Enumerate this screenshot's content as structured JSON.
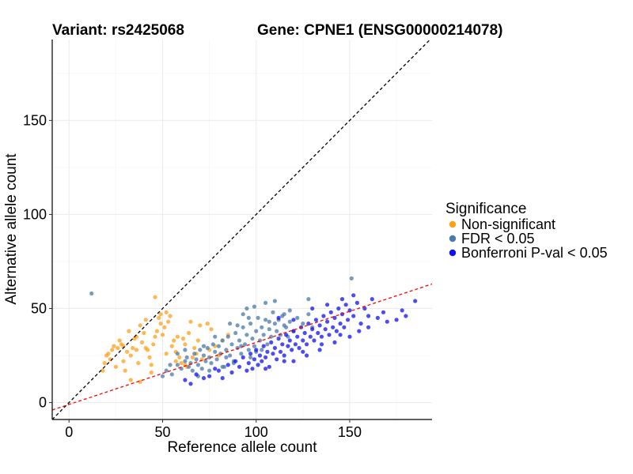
{
  "chart_data": {
    "type": "scatter",
    "title_left": "Variant: rs2425068",
    "title_right": "Gene: CPNE1 (ENSG00000214078)",
    "xlabel": "Reference allele count",
    "ylabel": "Alternative allele count",
    "xlim": [
      -9,
      194
    ],
    "ylim": [
      -9,
      193
    ],
    "x_ticks": [
      0,
      50,
      100,
      150
    ],
    "y_ticks": [
      0,
      50,
      100,
      150
    ],
    "grid": true,
    "legend": {
      "title": "Significance",
      "position": "right",
      "entries": [
        "Non-significant",
        "FDR < 0.05",
        "Bonferroni P-val < 0.05"
      ]
    },
    "reference_lines": [
      {
        "style": "dashed",
        "color": "#000000",
        "intercept": 0,
        "slope": 1
      },
      {
        "style": "dashed",
        "color": "#ff0000",
        "intercept": -1,
        "slope": 0.33
      }
    ],
    "series": [
      {
        "name": "Non-significant",
        "color": "#ff9f1a",
        "points": [
          [
            18,
            17
          ],
          [
            19,
            21
          ],
          [
            20,
            25
          ],
          [
            21,
            26
          ],
          [
            22,
            23
          ],
          [
            23,
            28
          ],
          [
            24,
            30
          ],
          [
            25,
            19
          ],
          [
            26,
            29
          ],
          [
            27,
            33
          ],
          [
            28,
            31
          ],
          [
            29,
            22
          ],
          [
            30,
            17
          ],
          [
            31,
            27
          ],
          [
            32,
            38
          ],
          [
            33,
            25
          ],
          [
            34,
            29
          ],
          [
            35,
            34
          ],
          [
            36,
            28
          ],
          [
            37,
            21
          ],
          [
            38,
            41
          ],
          [
            39,
            32
          ],
          [
            40,
            37
          ],
          [
            41,
            44
          ],
          [
            42,
            28
          ],
          [
            43,
            24
          ],
          [
            44,
            20
          ],
          [
            45,
            31
          ],
          [
            46,
            35
          ],
          [
            47,
            38
          ],
          [
            48,
            45
          ],
          [
            49,
            42
          ],
          [
            50,
            36
          ],
          [
            51,
            40
          ],
          [
            52,
            48
          ],
          [
            53,
            43
          ],
          [
            54,
            46
          ],
          [
            55,
            30
          ],
          [
            56,
            33
          ],
          [
            57,
            27
          ],
          [
            58,
            35
          ],
          [
            59,
            24
          ],
          [
            60,
            21
          ],
          [
            61,
            34
          ],
          [
            62,
            31
          ],
          [
            63,
            19
          ],
          [
            64,
            37
          ],
          [
            65,
            43
          ],
          [
            66,
            24
          ],
          [
            67,
            29
          ],
          [
            68,
            26
          ],
          [
            69,
            33
          ],
          [
            70,
            41
          ],
          [
            71,
            23
          ],
          [
            75,
            28
          ],
          [
            76,
            39
          ],
          [
            78,
            30
          ],
          [
            80,
            25
          ],
          [
            82,
            33
          ],
          [
            85,
            36
          ],
          [
            46,
            56
          ],
          [
            36,
            35
          ],
          [
            41,
            29
          ],
          [
            44,
            16
          ],
          [
            49,
            47
          ],
          [
            52,
            26
          ],
          [
            57,
            22
          ],
          [
            74,
            42
          ],
          [
            62,
            20
          ],
          [
            33,
            12
          ],
          [
            38,
            11
          ],
          [
            29,
            30
          ]
        ]
      },
      {
        "name": "FDR < 0.05",
        "color": "#4a7aa8",
        "points": [
          [
            12,
            58
          ],
          [
            50,
            14
          ],
          [
            52,
            17
          ],
          [
            55,
            15
          ],
          [
            58,
            20
          ],
          [
            60,
            18
          ],
          [
            62,
            22
          ],
          [
            63,
            24
          ],
          [
            64,
            19
          ],
          [
            65,
            21
          ],
          [
            66,
            17
          ],
          [
            67,
            26
          ],
          [
            68,
            23
          ],
          [
            69,
            20
          ],
          [
            70,
            28
          ],
          [
            71,
            18
          ],
          [
            72,
            25
          ],
          [
            73,
            22
          ],
          [
            74,
            29
          ],
          [
            75,
            24
          ],
          [
            76,
            21
          ],
          [
            77,
            31
          ],
          [
            78,
            27
          ],
          [
            79,
            23
          ],
          [
            80,
            30
          ],
          [
            81,
            26
          ],
          [
            82,
            33
          ],
          [
            83,
            19
          ],
          [
            84,
            28
          ],
          [
            85,
            35
          ],
          [
            86,
            25
          ],
          [
            87,
            31
          ],
          [
            88,
            22
          ],
          [
            89,
            37
          ],
          [
            90,
            29
          ],
          [
            91,
            33
          ],
          [
            92,
            26
          ],
          [
            93,
            40
          ],
          [
            94,
            31
          ],
          [
            95,
            36
          ],
          [
            96,
            28
          ],
          [
            97,
            42
          ],
          [
            98,
            34
          ],
          [
            99,
            30
          ],
          [
            100,
            38
          ],
          [
            101,
            45
          ],
          [
            102,
            33
          ],
          [
            103,
            28
          ],
          [
            104,
            36
          ],
          [
            105,
            44
          ],
          [
            106,
            31
          ],
          [
            107,
            39
          ],
          [
            108,
            35
          ],
          [
            109,
            48
          ],
          [
            110,
            42
          ],
          [
            111,
            38
          ],
          [
            112,
            44
          ],
          [
            113,
            36
          ],
          [
            114,
            46
          ],
          [
            115,
            41
          ],
          [
            116,
            40
          ],
          [
            117,
            35
          ],
          [
            118,
            43
          ],
          [
            120,
            38
          ],
          [
            122,
            45
          ],
          [
            125,
            42
          ],
          [
            128,
            47
          ],
          [
            130,
            40
          ],
          [
            88,
            21
          ],
          [
            92,
            30
          ],
          [
            97,
            24
          ],
          [
            100,
            27
          ],
          [
            103,
            40
          ],
          [
            107,
            43
          ],
          [
            93,
            47
          ],
          [
            95,
            50
          ],
          [
            105,
            53
          ],
          [
            110,
            54
          ],
          [
            115,
            47
          ],
          [
            118,
            49
          ],
          [
            128,
            55
          ],
          [
            151,
            66
          ],
          [
            75,
            17
          ],
          [
            69,
            14
          ],
          [
            82,
            19
          ],
          [
            86,
            42
          ],
          [
            99,
            51
          ],
          [
            62,
            28
          ],
          [
            58,
            26
          ],
          [
            54,
            20
          ],
          [
            72,
            30
          ],
          [
            78,
            35
          ],
          [
            84,
            24
          ],
          [
            90,
            41
          ],
          [
            96,
            45
          ]
        ]
      },
      {
        "name": "Bonferroni P-val < 0.05",
        "color": "#1010f0",
        "points": [
          [
            62,
            12
          ],
          [
            65,
            10
          ],
          [
            68,
            15
          ],
          [
            72,
            13
          ],
          [
            75,
            14
          ],
          [
            78,
            18
          ],
          [
            80,
            17
          ],
          [
            82,
            13
          ],
          [
            85,
            20
          ],
          [
            87,
            16
          ],
          [
            89,
            22
          ],
          [
            91,
            19
          ],
          [
            93,
            24
          ],
          [
            95,
            17
          ],
          [
            96,
            21
          ],
          [
            97,
            26
          ],
          [
            98,
            18
          ],
          [
            99,
            23
          ],
          [
            100,
            28
          ],
          [
            101,
            20
          ],
          [
            102,
            25
          ],
          [
            103,
            22
          ],
          [
            104,
            30
          ],
          [
            105,
            24
          ],
          [
            106,
            27
          ],
          [
            107,
            19
          ],
          [
            108,
            32
          ],
          [
            109,
            26
          ],
          [
            110,
            29
          ],
          [
            111,
            23
          ],
          [
            112,
            34
          ],
          [
            113,
            27
          ],
          [
            114,
            31
          ],
          [
            115,
            25
          ],
          [
            116,
            36
          ],
          [
            117,
            30
          ],
          [
            118,
            33
          ],
          [
            119,
            28
          ],
          [
            120,
            38
          ],
          [
            121,
            31
          ],
          [
            122,
            35
          ],
          [
            123,
            29
          ],
          [
            124,
            40
          ],
          [
            125,
            33
          ],
          [
            126,
            37
          ],
          [
            127,
            31
          ],
          [
            128,
            42
          ],
          [
            129,
            35
          ],
          [
            130,
            39
          ],
          [
            131,
            33
          ],
          [
            132,
            44
          ],
          [
            133,
            37
          ],
          [
            134,
            41
          ],
          [
            135,
            35
          ],
          [
            136,
            46
          ],
          [
            137,
            39
          ],
          [
            138,
            43
          ],
          [
            139,
            36
          ],
          [
            140,
            48
          ],
          [
            141,
            40
          ],
          [
            142,
            45
          ],
          [
            143,
            38
          ],
          [
            144,
            50
          ],
          [
            145,
            42
          ],
          [
            146,
            47
          ],
          [
            147,
            40
          ],
          [
            148,
            52
          ],
          [
            149,
            44
          ],
          [
            150,
            49
          ],
          [
            152,
            46
          ],
          [
            154,
            53
          ],
          [
            156,
            42
          ],
          [
            158,
            50
          ],
          [
            160,
            46
          ],
          [
            162,
            55
          ],
          [
            165,
            45
          ],
          [
            168,
            48
          ],
          [
            170,
            43
          ],
          [
            175,
            44
          ],
          [
            178,
            49
          ],
          [
            180,
            46
          ],
          [
            185,
            54
          ],
          [
            155,
            38
          ],
          [
            145,
            36
          ],
          [
            135,
            31
          ],
          [
            125,
            27
          ],
          [
            115,
            22
          ],
          [
            105,
            18
          ],
          [
            112,
            45
          ],
          [
            120,
            44
          ],
          [
            130,
            50
          ],
          [
            138,
            52
          ],
          [
            146,
            55
          ],
          [
            152,
            57
          ],
          [
            120,
            22
          ],
          [
            127,
            25
          ],
          [
            134,
            28
          ],
          [
            142,
            32
          ],
          [
            150,
            35
          ],
          [
            160,
            40
          ]
        ]
      }
    ]
  }
}
